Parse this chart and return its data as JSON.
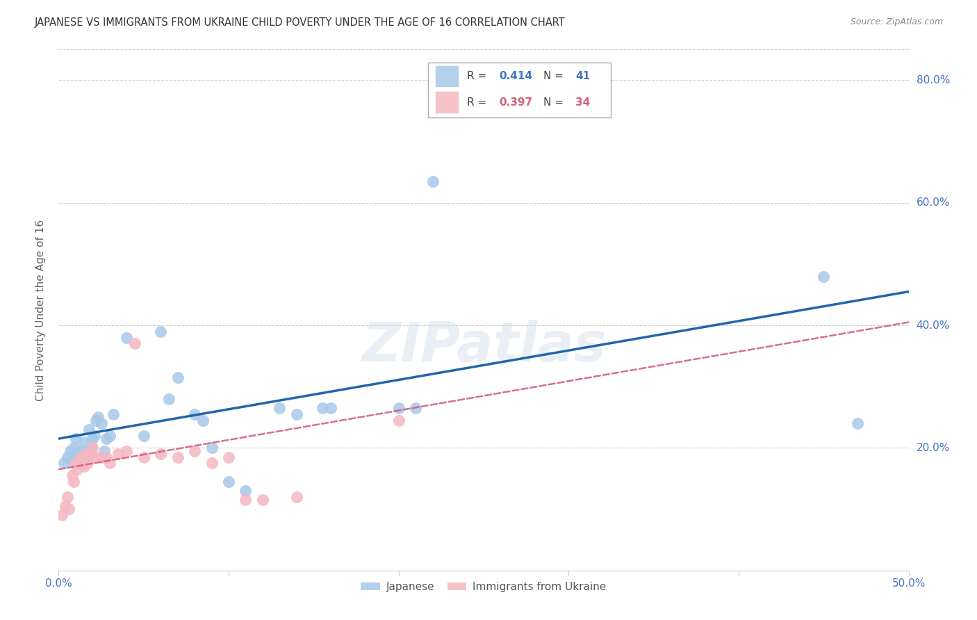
{
  "title": "JAPANESE VS IMMIGRANTS FROM UKRAINE CHILD POVERTY UNDER THE AGE OF 16 CORRELATION CHART",
  "source": "Source: ZipAtlas.com",
  "ylabel": "Child Poverty Under the Age of 16",
  "xlim": [
    0.0,
    0.5
  ],
  "ylim": [
    0.0,
    0.85
  ],
  "xticks": [
    0.0,
    0.1,
    0.2,
    0.3,
    0.4,
    0.5
  ],
  "xticklabels": [
    "0.0%",
    "",
    "",
    "",
    "",
    "50.0%"
  ],
  "yticks": [
    0.2,
    0.4,
    0.6,
    0.8
  ],
  "yticklabels": [
    "20.0%",
    "40.0%",
    "60.0%",
    "80.0%"
  ],
  "watermark": "ZIPatlas",
  "japanese_color": "#a8c8e8",
  "ukraine_color": "#f4b8c0",
  "japanese_line_color": "#2166ac",
  "ukraine_line_color": "#d4607a",
  "background_color": "#ffffff",
  "japanese_x": [
    0.003,
    0.005,
    0.007,
    0.008,
    0.009,
    0.01,
    0.012,
    0.013,
    0.015,
    0.016,
    0.017,
    0.018,
    0.019,
    0.02,
    0.021,
    0.022,
    0.023,
    0.025,
    0.027,
    0.028,
    0.03,
    0.032,
    0.04,
    0.05,
    0.06,
    0.065,
    0.07,
    0.08,
    0.085,
    0.09,
    0.1,
    0.11,
    0.13,
    0.14,
    0.155,
    0.16,
    0.2,
    0.21,
    0.22,
    0.45,
    0.47
  ],
  "japanese_y": [
    0.175,
    0.185,
    0.195,
    0.18,
    0.2,
    0.215,
    0.19,
    0.195,
    0.21,
    0.185,
    0.195,
    0.23,
    0.2,
    0.215,
    0.22,
    0.245,
    0.25,
    0.24,
    0.195,
    0.215,
    0.22,
    0.255,
    0.38,
    0.22,
    0.39,
    0.28,
    0.315,
    0.255,
    0.245,
    0.2,
    0.145,
    0.13,
    0.265,
    0.255,
    0.265,
    0.265,
    0.265,
    0.265,
    0.635,
    0.48,
    0.24
  ],
  "ukraine_x": [
    0.002,
    0.004,
    0.005,
    0.006,
    0.008,
    0.009,
    0.01,
    0.011,
    0.012,
    0.013,
    0.014,
    0.015,
    0.016,
    0.017,
    0.018,
    0.019,
    0.02,
    0.022,
    0.025,
    0.028,
    0.03,
    0.035,
    0.04,
    0.045,
    0.05,
    0.06,
    0.07,
    0.08,
    0.09,
    0.1,
    0.11,
    0.12,
    0.14,
    0.2
  ],
  "ukraine_y": [
    0.09,
    0.105,
    0.12,
    0.1,
    0.155,
    0.145,
    0.175,
    0.165,
    0.175,
    0.185,
    0.175,
    0.17,
    0.19,
    0.175,
    0.185,
    0.19,
    0.2,
    0.185,
    0.185,
    0.185,
    0.175,
    0.19,
    0.195,
    0.37,
    0.185,
    0.19,
    0.185,
    0.195,
    0.175,
    0.185,
    0.115,
    0.115,
    0.12,
    0.245
  ],
  "grid_color": "#d0d0d0",
  "title_color": "#333333",
  "axis_label_color": "#4472c4",
  "r1_color": "#4472c4",
  "n1_color": "#4472c4",
  "r2_color": "#d4607a",
  "n2_color": "#d4607a",
  "legend_label1": "Japanese",
  "legend_label2": "Immigrants from Ukraine",
  "japanese_trend_x0": 0.0,
  "japanese_trend_x1": 0.5,
  "japanese_trend_y0": 0.215,
  "japanese_trend_y1": 0.455,
  "ukraine_trend_x0": 0.0,
  "ukraine_trend_x1": 0.5,
  "ukraine_trend_y0": 0.165,
  "ukraine_trend_y1": 0.405
}
